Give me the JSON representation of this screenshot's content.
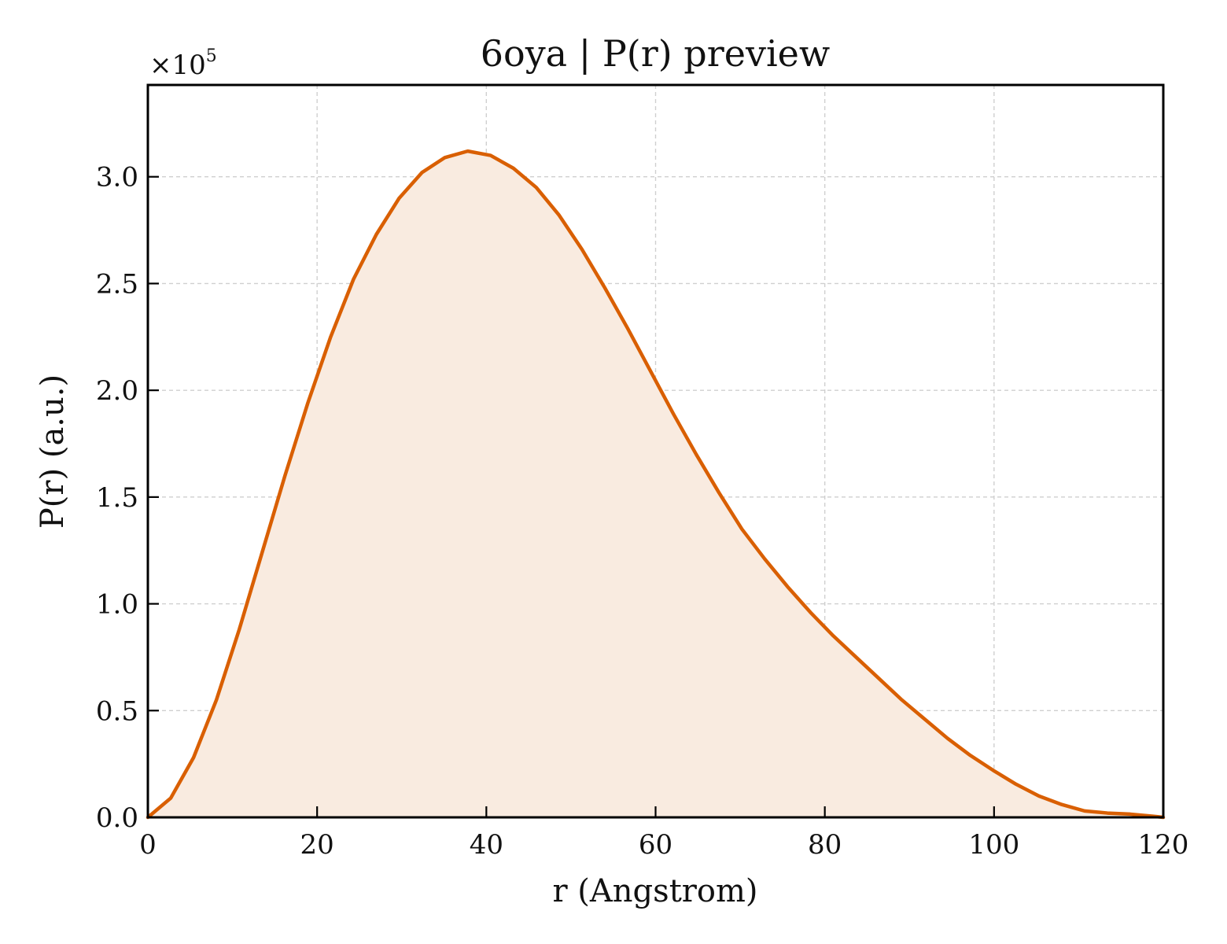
{
  "chart_data": {
    "type": "area",
    "title": "6oya | P(r) preview",
    "xlabel": "r (Angstrom)",
    "ylabel": "P(r) (a.u.)",
    "y_multiplier": {
      "base": "×10",
      "exponent": "5"
    },
    "xlim": [
      0,
      120
    ],
    "ylim": [
      0,
      3.43
    ],
    "xticks": [
      0,
      20,
      40,
      60,
      80,
      100,
      120
    ],
    "xtick_labels": [
      "0",
      "20",
      "40",
      "60",
      "80",
      "100",
      "120"
    ],
    "yticks": [
      0.0,
      0.5,
      1.0,
      1.5,
      2.0,
      2.5,
      3.0
    ],
    "ytick_labels": [
      "0.0",
      "0.5",
      "1.0",
      "1.5",
      "2.0",
      "2.5",
      "3.0"
    ],
    "grid": true,
    "line_color": "#d95f02",
    "fill_color": "#f9ebe0",
    "series": [
      {
        "x": [
          0,
          2.7,
          5.4,
          8.1,
          10.8,
          13.5,
          16.2,
          18.9,
          21.6,
          24.3,
          27.0,
          29.7,
          32.4,
          35.1,
          37.8,
          40.5,
          43.2,
          45.9,
          48.6,
          51.3,
          54.0,
          56.7,
          59.4,
          62.1,
          64.8,
          67.5,
          70.2,
          72.9,
          75.6,
          78.3,
          81.0,
          83.7,
          86.4,
          89.1,
          91.8,
          94.5,
          97.2,
          99.9,
          102.6,
          105.3,
          108.0,
          110.7,
          113.4,
          116.1,
          118.8,
          120.0
        ],
        "values": [
          0.0,
          0.09,
          0.28,
          0.55,
          0.88,
          1.24,
          1.6,
          1.94,
          2.25,
          2.52,
          2.73,
          2.9,
          3.02,
          3.09,
          3.12,
          3.1,
          3.04,
          2.95,
          2.82,
          2.66,
          2.48,
          2.29,
          2.09,
          1.89,
          1.7,
          1.52,
          1.35,
          1.21,
          1.08,
          0.96,
          0.85,
          0.75,
          0.65,
          0.55,
          0.46,
          0.37,
          0.29,
          0.22,
          0.155,
          0.1,
          0.06,
          0.03,
          0.02,
          0.015,
          0.005,
          0.0
        ]
      }
    ]
  }
}
